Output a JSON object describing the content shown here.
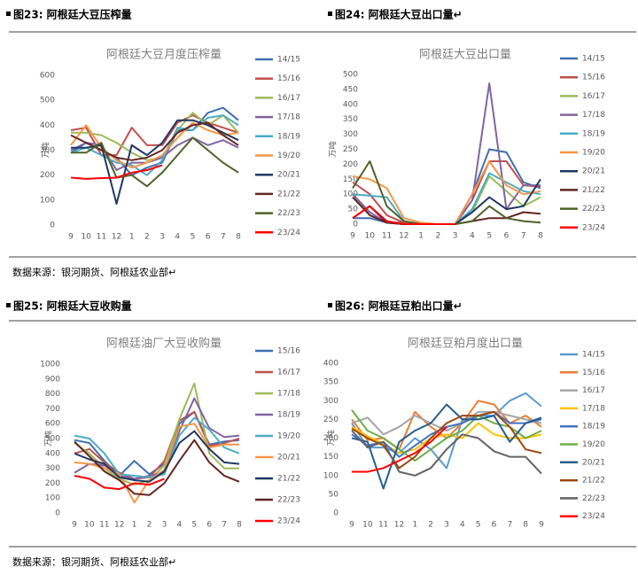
{
  "headers": [
    "图23: 阿根廷大豆压榨量",
    "图24: 阿根廷大豆出口量↵",
    "图25: 阿根廷大豆收购量",
    "图26: 阿根廷豆粕出口量↵"
  ],
  "sources": [
    "数据来源：银河期货、阿根廷农业部↵",
    "数据来源：银河期货、阿根廷农业部↵"
  ],
  "chart_data": [
    {
      "type": "line",
      "title": "阿根廷大豆月度压榨量",
      "y_label": "万吨",
      "categories": [
        "9",
        "10",
        "11",
        "12",
        "1",
        "2",
        "3",
        "4",
        "5",
        "6",
        "7",
        "8"
      ],
      "ylim": [
        0,
        600
      ],
      "yticks": [
        0,
        100,
        200,
        300,
        400,
        500,
        600
      ],
      "series": [
        {
          "name": "14/15",
          "color": "#3f6fb5",
          "values": [
            290,
            330,
            300,
            270,
            200,
            230,
            250,
            380,
            380,
            450,
            470,
            420
          ]
        },
        {
          "name": "15/16",
          "color": "#c0504d",
          "values": [
            380,
            390,
            280,
            280,
            390,
            320,
            320,
            410,
            440,
            410,
            390,
            370
          ]
        },
        {
          "name": "16/17",
          "color": "#9bbb59",
          "values": [
            370,
            370,
            360,
            330,
            290,
            260,
            270,
            380,
            450,
            400,
            440,
            370
          ]
        },
        {
          "name": "17/18",
          "color": "#8064a2",
          "values": [
            300,
            330,
            320,
            220,
            250,
            250,
            270,
            320,
            350,
            320,
            340,
            310
          ]
        },
        {
          "name": "18/19",
          "color": "#4bacc6",
          "values": [
            290,
            310,
            280,
            250,
            240,
            200,
            260,
            390,
            380,
            430,
            440,
            400
          ]
        },
        {
          "name": "19/20",
          "color": "#f79646",
          "values": [
            320,
            400,
            310,
            260,
            230,
            250,
            280,
            350,
            410,
            380,
            360,
            370
          ]
        },
        {
          "name": "20/21",
          "color": "#1f3864",
          "values": [
            310,
            310,
            320,
            85,
            320,
            280,
            330,
            420,
            420,
            400,
            370,
            340
          ]
        },
        {
          "name": "21/22",
          "color": "#632523",
          "values": [
            360,
            330,
            300,
            270,
            260,
            270,
            300,
            370,
            400,
            410,
            360,
            320
          ]
        },
        {
          "name": "22/23",
          "color": "#4f6228",
          "values": [
            290,
            290,
            330,
            190,
            200,
            155,
            210,
            280,
            350,
            300,
            250,
            210
          ]
        },
        {
          "name": "23/24",
          "color": "#ff0000",
          "values": [
            190,
            185,
            188,
            190,
            210,
            220,
            240,
            null,
            null,
            null,
            null,
            null
          ]
        }
      ]
    },
    {
      "type": "line",
      "title": "阿根廷大豆出口量",
      "y_label": "万吨",
      "categories": [
        "9",
        "10",
        "11",
        "12",
        "1",
        "2",
        "3",
        "4",
        "5",
        "6",
        "7",
        "8"
      ],
      "ylim": [
        0,
        500
      ],
      "yticks": [
        0,
        50,
        100,
        150,
        200,
        250,
        300,
        350,
        400,
        450,
        500
      ],
      "series": [
        {
          "name": "14/15",
          "color": "#3f6fb5",
          "values": [
            20,
            20,
            5,
            5,
            0,
            0,
            0,
            100,
            250,
            240,
            140,
            120
          ]
        },
        {
          "name": "15/16",
          "color": "#c0504d",
          "values": [
            140,
            100,
            30,
            5,
            0,
            0,
            0,
            80,
            210,
            210,
            130,
            125
          ]
        },
        {
          "name": "16/17",
          "color": "#9bbb59",
          "values": [
            100,
            30,
            5,
            0,
            0,
            0,
            0,
            40,
            160,
            110,
            60,
            90
          ]
        },
        {
          "name": "17/18",
          "color": "#8064a2",
          "values": [
            100,
            40,
            5,
            0,
            0,
            0,
            0,
            80,
            470,
            50,
            130,
            130
          ]
        },
        {
          "name": "18/19",
          "color": "#4bacc6",
          "values": [
            100,
            95,
            90,
            10,
            0,
            0,
            0,
            50,
            170,
            140,
            110,
            100
          ]
        },
        {
          "name": "19/20",
          "color": "#f79646",
          "values": [
            160,
            150,
            120,
            20,
            5,
            0,
            0,
            100,
            210,
            130,
            100,
            110
          ]
        },
        {
          "name": "20/21",
          "color": "#1f3864",
          "values": [
            20,
            60,
            5,
            0,
            0,
            0,
            0,
            40,
            90,
            50,
            60,
            150
          ]
        },
        {
          "name": "21/22",
          "color": "#632523",
          "values": [
            90,
            30,
            5,
            0,
            0,
            0,
            0,
            10,
            20,
            20,
            40,
            35
          ]
        },
        {
          "name": "22/23",
          "color": "#4f6228",
          "values": [
            120,
            210,
            60,
            10,
            0,
            0,
            0,
            10,
            60,
            20,
            10,
            5
          ]
        },
        {
          "name": "23/24",
          "color": "#ff0000",
          "values": [
            20,
            60,
            10,
            0,
            0,
            0,
            0,
            null,
            null,
            null,
            null,
            null
          ]
        }
      ]
    },
    {
      "type": "line",
      "title": "阿根廷油厂大豆收购量",
      "y_label": "万吨",
      "categories": [
        "9",
        "10",
        "11",
        "12",
        "1",
        "2",
        "3",
        "4",
        "5",
        "6",
        "7",
        "8"
      ],
      "ylim": [
        0,
        1000
      ],
      "yticks": [
        0,
        100,
        200,
        300,
        400,
        500,
        600,
        700,
        800,
        900,
        1000
      ],
      "series": [
        {
          "name": "15/16",
          "color": "#3f6fb5",
          "values": [
            490,
            470,
            350,
            250,
            350,
            260,
            330,
            600,
            680,
            460,
            480,
            490
          ]
        },
        {
          "name": "16/17",
          "color": "#c0504d",
          "values": [
            400,
            430,
            340,
            270,
            230,
            240,
            350,
            620,
            680,
            450,
            470,
            500
          ]
        },
        {
          "name": "17/18",
          "color": "#9bbb59",
          "values": [
            470,
            400,
            300,
            230,
            190,
            220,
            320,
            630,
            870,
            400,
            300,
            300
          ]
        },
        {
          "name": "18/19",
          "color": "#8064a2",
          "values": [
            270,
            330,
            320,
            250,
            230,
            250,
            270,
            550,
            770,
            570,
            510,
            520
          ]
        },
        {
          "name": "19/20",
          "color": "#4bacc6",
          "values": [
            520,
            500,
            400,
            260,
            250,
            240,
            260,
            520,
            640,
            560,
            440,
            400
          ]
        },
        {
          "name": "20/21",
          "color": "#f79646",
          "values": [
            340,
            330,
            300,
            260,
            70,
            220,
            290,
            580,
            600,
            440,
            460,
            460
          ]
        },
        {
          "name": "21/22",
          "color": "#1f3864",
          "values": [
            400,
            360,
            330,
            240,
            220,
            210,
            280,
            470,
            550,
            430,
            340,
            330
          ]
        },
        {
          "name": "22/23",
          "color": "#632523",
          "values": [
            480,
            380,
            280,
            220,
            130,
            120,
            200,
            350,
            490,
            340,
            250,
            210
          ]
        },
        {
          "name": "23/24",
          "color": "#ff0000",
          "values": [
            250,
            230,
            170,
            160,
            200,
            190,
            230,
            null,
            null,
            null,
            null,
            null
          ]
        }
      ]
    },
    {
      "type": "line",
      "title": "阿根廷豆粕月度出口量",
      "y_label": "万吨",
      "categories": [
        "9",
        "10",
        "11",
        "12",
        "1",
        "2",
        "3",
        "4",
        "5",
        "6",
        "7",
        "8",
        "9"
      ],
      "ylim": [
        0,
        400
      ],
      "yticks": [
        0,
        50,
        100,
        150,
        200,
        250,
        300,
        350,
        400
      ],
      "series": [
        {
          "name": "14/15",
          "color": "#5b9bd5",
          "values": [
            240,
            175,
            175,
            160,
            200,
            170,
            120,
            250,
            260,
            260,
            300,
            320,
            285
          ]
        },
        {
          "name": "15/16",
          "color": "#ed7d31",
          "values": [
            250,
            195,
            200,
            170,
            270,
            230,
            200,
            240,
            300,
            290,
            240,
            260,
            230
          ]
        },
        {
          "name": "16/17",
          "color": "#a5a5a5",
          "values": [
            240,
            255,
            210,
            230,
            260,
            240,
            220,
            240,
            270,
            270,
            260,
            250,
            240
          ]
        },
        {
          "name": "17/18",
          "color": "#ffc000",
          "values": [
            230,
            205,
            185,
            160,
            170,
            200,
            210,
            200,
            240,
            210,
            200,
            200,
            210
          ]
        },
        {
          "name": "18/19",
          "color": "#4472c4",
          "values": [
            210,
            180,
            190,
            150,
            180,
            210,
            230,
            240,
            260,
            270,
            240,
            240,
            250
          ]
        },
        {
          "name": "19/20",
          "color": "#70ad47",
          "values": [
            275,
            220,
            200,
            170,
            140,
            170,
            200,
            220,
            260,
            240,
            230,
            200,
            220
          ]
        },
        {
          "name": "20/21",
          "color": "#255e91",
          "values": [
            200,
            190,
            65,
            190,
            220,
            240,
            290,
            250,
            250,
            260,
            190,
            240,
            255
          ]
        },
        {
          "name": "21/22",
          "color": "#9e480e",
          "values": [
            225,
            200,
            180,
            120,
            150,
            200,
            240,
            260,
            260,
            270,
            230,
            170,
            160
          ]
        },
        {
          "name": "22/23",
          "color": "#636363",
          "values": [
            220,
            175,
            190,
            110,
            100,
            120,
            170,
            210,
            200,
            165,
            150,
            150,
            105
          ]
        },
        {
          "name": "23/24",
          "color": "#ff0000",
          "values": [
            110,
            110,
            120,
            140,
            160,
            190,
            230,
            null,
            null,
            null,
            null,
            null,
            null
          ]
        }
      ]
    }
  ]
}
